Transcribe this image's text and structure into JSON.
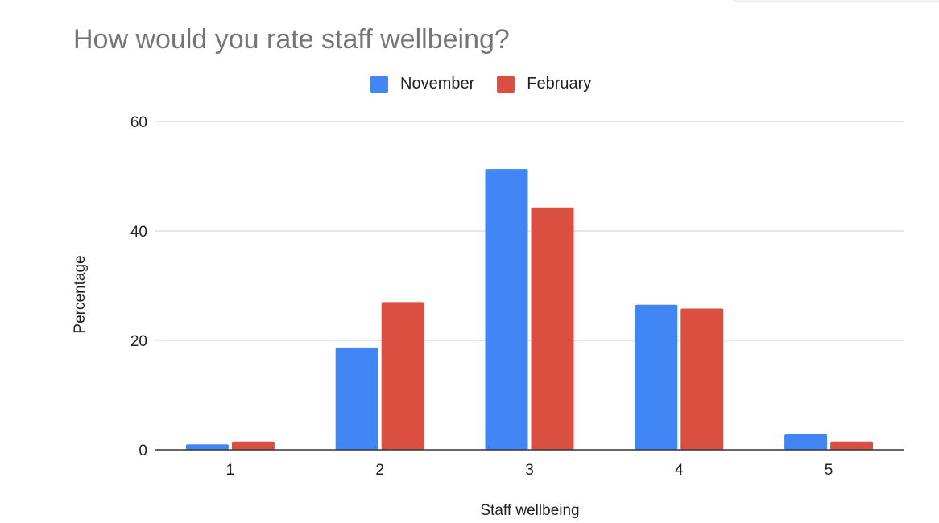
{
  "colors": {
    "November": "#4285f4",
    "February": "#db4f40"
  },
  "chart_data": {
    "type": "bar",
    "title": "How would you rate staff wellbeing?",
    "xlabel": "Staff wellbeing",
    "ylabel": "Percentage",
    "categories": [
      "1",
      "2",
      "3",
      "4",
      "5"
    ],
    "series": [
      {
        "name": "November",
        "color": "#4285f4",
        "values": [
          1.0,
          18.7,
          51.3,
          26.5,
          2.8
        ]
      },
      {
        "name": "February",
        "color": "#db4f40",
        "values": [
          1.5,
          27.0,
          44.3,
          25.8,
          1.5
        ]
      }
    ],
    "ylim": [
      0,
      60
    ],
    "yticks": [
      "0",
      "20",
      "40",
      "60"
    ],
    "grid": true,
    "legend_position": "top-center"
  }
}
